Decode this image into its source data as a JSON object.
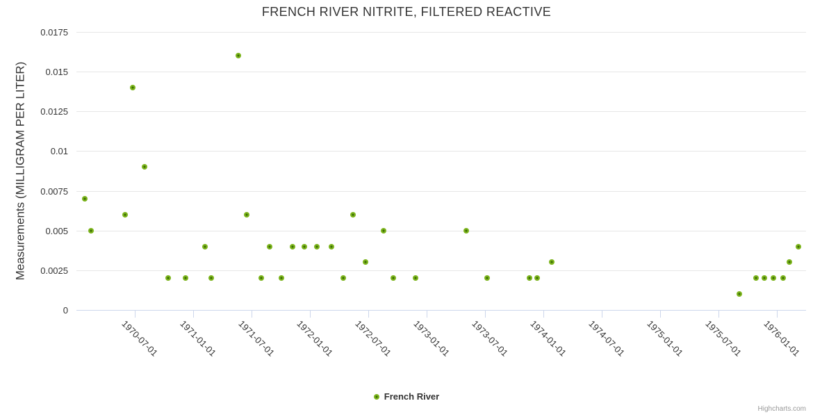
{
  "title": "FRENCH RIVER NITRITE, FILTERED REACTIVE",
  "credits": "Highcharts.com",
  "colors": {
    "series_green": "#7cb41c",
    "marker_center": "#3a6b04",
    "gridline": "#e6e6e6",
    "axis_line": "#ccd6eb",
    "text": "#333333",
    "credits_text": "#999999",
    "background": "#ffffff"
  },
  "chart_data": {
    "type": "scatter",
    "title": "FRENCH RIVER NITRITE, FILTERED REACTIVE",
    "xlabel": "",
    "ylabel": "Measurements (MILLIGRAM PER LITER)",
    "ylim": [
      0,
      0.0175
    ],
    "y_tick_interval": 0.0025,
    "y_tick_labels": [
      "0",
      "0.0025",
      "0.005",
      "0.0075",
      "0.01",
      "0.0125",
      "0.015",
      "0.0175"
    ],
    "x_range": [
      "1970-01-01",
      "1976-04-01"
    ],
    "x_tick_labels": [
      "1970-07-01",
      "1971-01-01",
      "1971-07-01",
      "1972-01-01",
      "1972-07-01",
      "1973-01-01",
      "1973-07-01",
      "1974-01-01",
      "1974-07-01",
      "1975-01-01",
      "1975-07-01",
      "1976-01-01"
    ],
    "grid": true,
    "legend_position": "bottom-center",
    "series": [
      {
        "name": "French River",
        "color": "#7cb41c",
        "marker_center_color": "#3a6b04",
        "points": [
          {
            "date": "1970-01-28",
            "value": 0.007
          },
          {
            "date": "1970-02-17",
            "value": 0.005
          },
          {
            "date": "1970-06-01",
            "value": 0.006
          },
          {
            "date": "1970-06-24",
            "value": 0.014
          },
          {
            "date": "1970-08-02",
            "value": 0.009
          },
          {
            "date": "1970-10-13",
            "value": 0.002
          },
          {
            "date": "1970-12-08",
            "value": 0.002
          },
          {
            "date": "1971-02-07",
            "value": 0.004
          },
          {
            "date": "1971-02-27",
            "value": 0.002
          },
          {
            "date": "1971-05-20",
            "value": 0.016
          },
          {
            "date": "1971-06-16",
            "value": 0.006
          },
          {
            "date": "1971-08-01",
            "value": 0.002
          },
          {
            "date": "1971-08-28",
            "value": 0.004
          },
          {
            "date": "1971-10-03",
            "value": 0.002
          },
          {
            "date": "1971-11-07",
            "value": 0.004
          },
          {
            "date": "1971-12-15",
            "value": 0.004
          },
          {
            "date": "1972-01-22",
            "value": 0.004
          },
          {
            "date": "1972-03-08",
            "value": 0.004
          },
          {
            "date": "1972-04-14",
            "value": 0.002
          },
          {
            "date": "1972-05-13",
            "value": 0.006
          },
          {
            "date": "1972-06-22",
            "value": 0.003
          },
          {
            "date": "1972-08-18",
            "value": 0.005
          },
          {
            "date": "1972-09-18",
            "value": 0.002
          },
          {
            "date": "1972-11-28",
            "value": 0.002
          },
          {
            "date": "1973-05-03",
            "value": 0.005
          },
          {
            "date": "1973-07-08",
            "value": 0.002
          },
          {
            "date": "1973-11-19",
            "value": 0.002
          },
          {
            "date": "1973-12-12",
            "value": 0.002
          },
          {
            "date": "1974-01-27",
            "value": 0.003
          },
          {
            "date": "1975-09-05",
            "value": 0.001
          },
          {
            "date": "1975-10-27",
            "value": 0.002
          },
          {
            "date": "1975-11-23",
            "value": 0.002
          },
          {
            "date": "1975-12-20",
            "value": 0.002
          },
          {
            "date": "1976-01-21",
            "value": 0.002
          },
          {
            "date": "1976-02-09",
            "value": 0.003
          },
          {
            "date": "1976-03-07",
            "value": 0.004
          }
        ]
      }
    ]
  }
}
